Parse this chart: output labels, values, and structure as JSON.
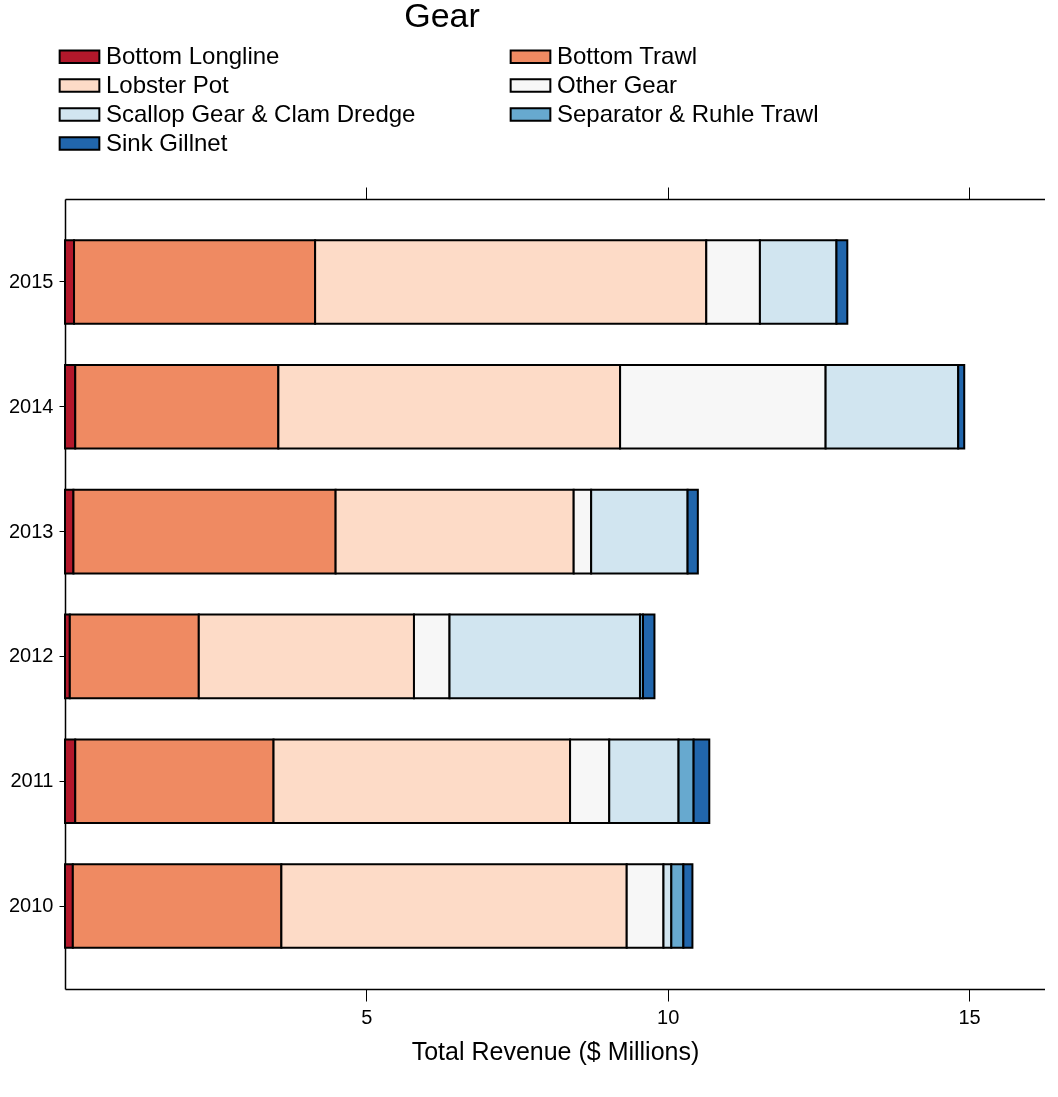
{
  "chart_data": {
    "type": "bar",
    "orientation": "horizontal",
    "stacked": true,
    "legend_title": "Gear",
    "xlabel": "Total Revenue ($ Millions)",
    "categories": [
      "2015",
      "2014",
      "2013",
      "2012",
      "2011",
      "2010"
    ],
    "series": [
      {
        "name": "Bottom Longline",
        "color": "#b2182b",
        "values": [
          0.15,
          0.17,
          0.14,
          0.08,
          0.17,
          0.13
        ]
      },
      {
        "name": "Bottom Trawl",
        "color": "#ef8a62",
        "values": [
          4.0,
          3.37,
          4.35,
          2.14,
          3.29,
          3.46
        ]
      },
      {
        "name": "Lobster Pot",
        "color": "#fddbc7",
        "values": [
          6.49,
          5.67,
          3.95,
          3.57,
          4.92,
          5.73
        ]
      },
      {
        "name": "Other Gear",
        "color": "#f7f7f7",
        "values": [
          0.89,
          3.41,
          0.29,
          0.59,
          0.65,
          0.61
        ]
      },
      {
        "name": "Scallop Gear & Clam Dredge",
        "color": "#d1e5f0",
        "values": [
          1.27,
          2.2,
          1.6,
          3.16,
          1.15,
          0.13
        ]
      },
      {
        "name": "Separator & Ruhle Trawl",
        "color": "#67a9cf",
        "values": [
          null,
          null,
          null,
          0.05,
          0.25,
          0.2
        ]
      },
      {
        "name": "Sink Gillnet",
        "color": "#2166ac",
        "values": [
          0.18,
          0.1,
          0.17,
          0.19,
          0.26,
          0.15
        ]
      }
    ],
    "xlim": [
      0,
      16.26
    ],
    "xticks": [
      5,
      10,
      15
    ],
    "grid": false,
    "legend": "top"
  }
}
